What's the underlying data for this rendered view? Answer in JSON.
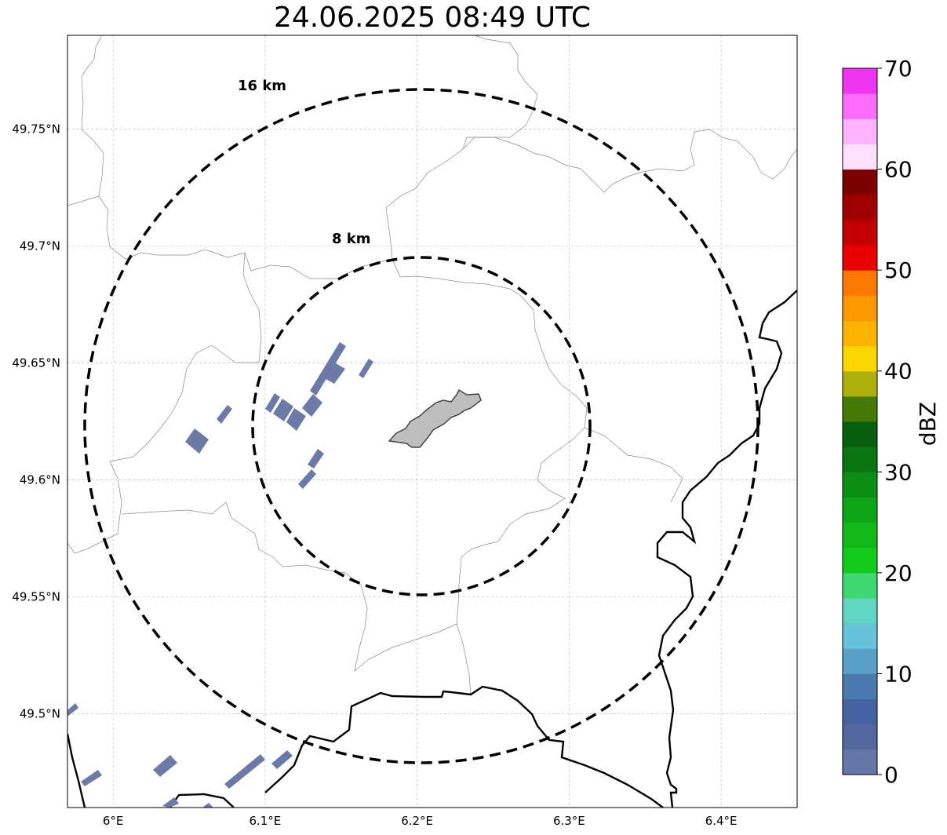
{
  "title": "24.06.2025 08:49 UTC",
  "map": {
    "lon_range": [
      5.97,
      6.45
    ],
    "lat_range": [
      49.46,
      49.79
    ],
    "lon_ticks": [
      {
        "value": 6.0,
        "label": "6°E"
      },
      {
        "value": 6.1,
        "label": "6.1°E"
      },
      {
        "value": 6.2,
        "label": "6.2°E"
      },
      {
        "value": 6.3,
        "label": "6.3°E"
      },
      {
        "value": 6.4,
        "label": "6.4°E"
      }
    ],
    "lat_ticks": [
      {
        "value": 49.75,
        "label": "49.75°N"
      },
      {
        "value": 49.7,
        "label": "49.7°N"
      },
      {
        "value": 49.65,
        "label": "49.65°N"
      },
      {
        "value": 49.6,
        "label": "49.6°N"
      },
      {
        "value": 49.55,
        "label": "49.55°N"
      },
      {
        "value": 49.5,
        "label": "49.5°N"
      }
    ],
    "gridlines": true,
    "range_rings": [
      {
        "label": "16 km",
        "radius_km": 16
      },
      {
        "label": "8 km",
        "radius_km": 8
      }
    ],
    "radar_center": {
      "lon": 6.2,
      "lat": 49.624
    },
    "city_area_color": "#bebebe",
    "echo_color": "#6b7aa8"
  },
  "colorbar": {
    "label": "dBZ",
    "min": 0,
    "max": 70,
    "ticks": [
      {
        "value": 0,
        "label": "0"
      },
      {
        "value": 10,
        "label": "10"
      },
      {
        "value": 20,
        "label": "20"
      },
      {
        "value": 30,
        "label": "30"
      },
      {
        "value": 40,
        "label": "40"
      },
      {
        "value": 50,
        "label": "50"
      },
      {
        "value": 60,
        "label": "60"
      },
      {
        "value": 70,
        "label": "70"
      }
    ],
    "colors": [
      "#6576a8",
      "#5468a0",
      "#4662a2",
      "#4a79b0",
      "#599fc7",
      "#67c2dc",
      "#62d6c4",
      "#3fd771",
      "#13cb1c",
      "#12b818",
      "#10a516",
      "#0c8d14",
      "#0a7612",
      "#075e0c",
      "#457a08",
      "#adb00a",
      "#fbd700",
      "#fdb300",
      "#fd9800",
      "#fd7800",
      "#e80000",
      "#c20000",
      "#9e0000",
      "#7d0000",
      "#ffe0ff",
      "#ffb3ff",
      "#ff6dff",
      "#f035f0"
    ]
  }
}
